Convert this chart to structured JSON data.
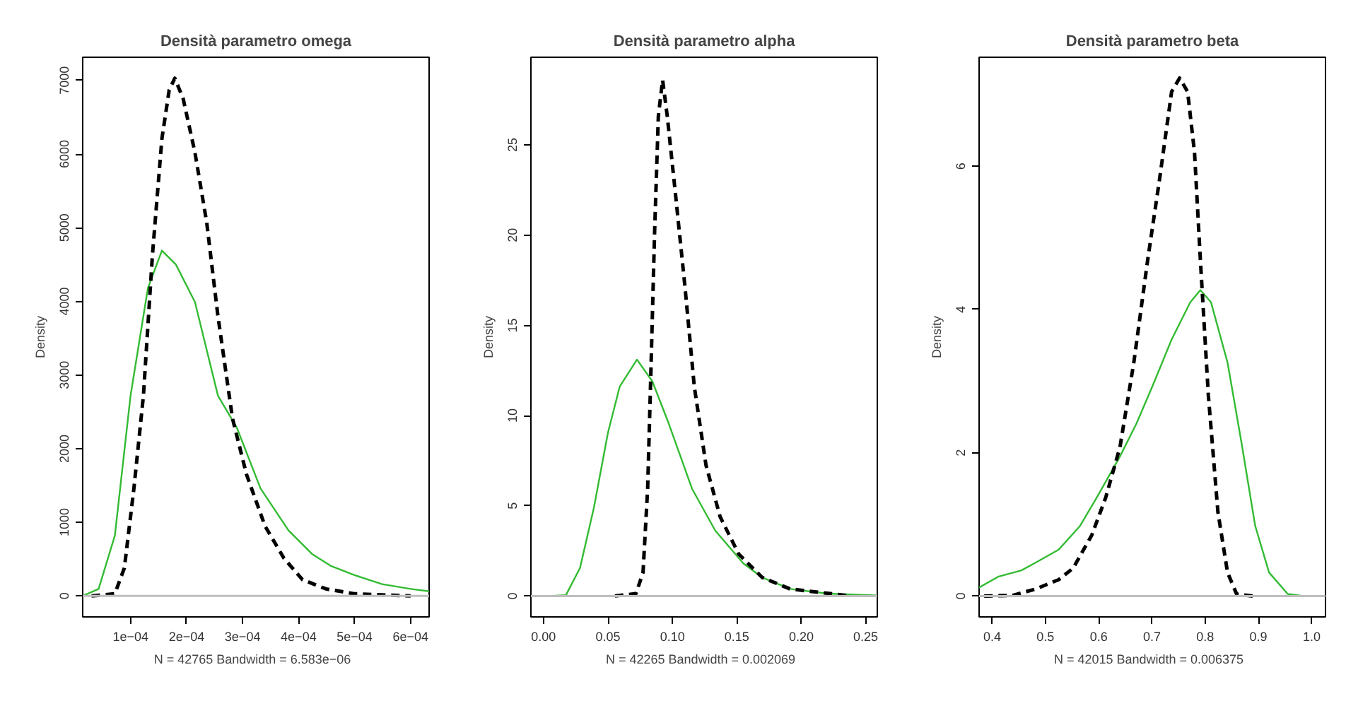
{
  "chart_data": [
    {
      "type": "line",
      "title": "Densità parametro omega",
      "xlabel": "N = 42765   Bandwidth = 6.583e−06",
      "ylabel": "Density",
      "xlim": [
        1.46e-05,
        0.000633
      ],
      "ylim": [
        -285,
        7315
      ],
      "xticks": [
        {
          "value": 0.0001,
          "label": "1e−04"
        },
        {
          "value": 0.0002,
          "label": "2e−04"
        },
        {
          "value": 0.0003,
          "label": "3e−04"
        },
        {
          "value": 0.0004,
          "label": "4e−04"
        },
        {
          "value": 0.0005,
          "label": "5e−04"
        },
        {
          "value": 0.0006,
          "label": "6e−04"
        }
      ],
      "yticks": [
        0,
        1000,
        2000,
        3000,
        4000,
        5000,
        6000,
        7000
      ],
      "ref_lines": [
        {
          "axis": "y",
          "value": 0,
          "color": "#bebebe"
        }
      ],
      "series": [
        {
          "color": "#33bb33",
          "line_style": "solid",
          "x": [
            1.46e-05,
            4.3e-05,
            7.2e-05,
            0.0001,
            0.000131,
            0.000156,
            0.000181,
            0.000215,
            0.000256,
            0.00029,
            0.000332,
            0.000382,
            0.000424,
            0.000457,
            0.000499,
            0.000549,
            0.0006,
            0.000633
          ],
          "values": [
            0,
            95,
            820,
            2720,
            4180,
            4690,
            4500,
            3990,
            2720,
            2280,
            1460,
            890,
            570,
            410,
            285,
            160,
            95,
            63
          ]
        },
        {
          "color": "#000000",
          "line_style": "dashed",
          "x": [
            3.05e-05,
            7.2e-05,
            8.9e-05,
            0.000106,
            0.000123,
            0.000139,
            0.000156,
            0.000169,
            0.000179,
            0.000194,
            0.000215,
            0.000236,
            0.000256,
            0.000282,
            0.000307,
            0.00034,
            0.000374,
            0.000407,
            0.000449,
            0.000499,
            0.0006
          ],
          "values": [
            0,
            30,
            380,
            1460,
            2720,
            4620,
            6210,
            6870,
            7030,
            6750,
            6020,
            5070,
            3800,
            2410,
            1650,
            950,
            510,
            220,
            95,
            30,
            0
          ]
        }
      ]
    },
    {
      "type": "line",
      "title": "Densità parametro alpha",
      "xlabel": "N = 42265   Bandwidth = 0.002069",
      "ylabel": "Density",
      "xlim": [
        -0.0098,
        0.259
      ],
      "ylim": [
        -1.16,
        29.86
      ],
      "xticks": [
        {
          "value": 0,
          "label": "0.00"
        },
        0.05,
        {
          "value": 0.1,
          "label": "0.10"
        },
        0.15,
        {
          "value": 0.2,
          "label": "0.20"
        },
        0.25
      ],
      "yticks": [
        0,
        5,
        10,
        15,
        20,
        25
      ],
      "ref_lines": [
        {
          "axis": "y",
          "value": 0,
          "color": "#bebebe"
        }
      ],
      "series": [
        {
          "color": "#33bb33",
          "line_style": "solid",
          "x": [
            0.0047,
            0.0174,
            0.0283,
            0.0391,
            0.05,
            0.0591,
            0.0725,
            0.0844,
            0.0971,
            0.1152,
            0.1333,
            0.155,
            0.1696,
            0.1913,
            0.2203,
            0.259
          ],
          "values": [
            0,
            0.05,
            1.55,
            4.9,
            9.05,
            11.6,
            13.1,
            11.9,
            9.57,
            5.95,
            3.62,
            1.81,
            1.03,
            0.39,
            0.13,
            0.03
          ]
        },
        {
          "color": "#000000",
          "line_style": "dashed",
          "x": [
            0.0554,
            0.0717,
            0.0772,
            0.0808,
            0.0833,
            0.0862,
            0.0891,
            0.0924,
            0.096,
            0.1025,
            0.1098,
            0.117,
            0.1261,
            0.137,
            0.1514,
            0.1696,
            0.1913,
            0.2384
          ],
          "values": [
            0,
            0.13,
            1.29,
            5.95,
            12.4,
            20.2,
            26.6,
            28.6,
            26.6,
            22.2,
            17.1,
            11.6,
            7.24,
            4.4,
            2.33,
            1.03,
            0.39,
            0
          ]
        }
      ]
    },
    {
      "type": "line",
      "title": "Densità parametro beta",
      "xlabel": "N = 42015   Bandwidth = 0.006375",
      "ylabel": "Density",
      "xlim": [
        0.3754,
        1.026
      ],
      "ylim": [
        -0.29,
        7.52
      ],
      "xticks": [
        0.4,
        0.5,
        0.6,
        0.7,
        0.8,
        0.9,
        {
          "value": 1.0,
          "label": "1.0"
        }
      ],
      "yticks": [
        0,
        2,
        4,
        6
      ],
      "ref_lines": [
        {
          "axis": "y",
          "value": 0,
          "color": "#bebebe"
        }
      ],
      "series": [
        {
          "color": "#33bb33",
          "line_style": "solid",
          "x": [
            0.3754,
            0.411,
            0.455,
            0.482,
            0.525,
            0.565,
            0.596,
            0.64,
            0.671,
            0.701,
            0.737,
            0.772,
            0.791,
            0.811,
            0.842,
            0.868,
            0.894,
            0.92,
            0.955,
            0.986
          ],
          "values": [
            0.12,
            0.27,
            0.36,
            0.47,
            0.65,
            0.98,
            1.37,
            1.95,
            2.41,
            2.93,
            3.58,
            4.1,
            4.27,
            4.1,
            3.26,
            2.15,
            0.98,
            0.33,
            0.03,
            0
          ]
        },
        {
          "color": "#000000",
          "line_style": "dashed",
          "x": [
            0.385,
            0.438,
            0.482,
            0.525,
            0.552,
            0.587,
            0.613,
            0.64,
            0.666,
            0.692,
            0.714,
            0.737,
            0.752,
            0.767,
            0.78,
            0.791,
            0.806,
            0.824,
            0.842,
            0.859,
            0.89
          ],
          "values": [
            0,
            0.01,
            0.1,
            0.23,
            0.39,
            0.85,
            1.37,
            2.08,
            3.26,
            4.69,
            5.8,
            7.04,
            7.23,
            7.04,
            6.19,
            4.69,
            2.8,
            1.17,
            0.33,
            0.03,
            0
          ]
        }
      ]
    }
  ]
}
